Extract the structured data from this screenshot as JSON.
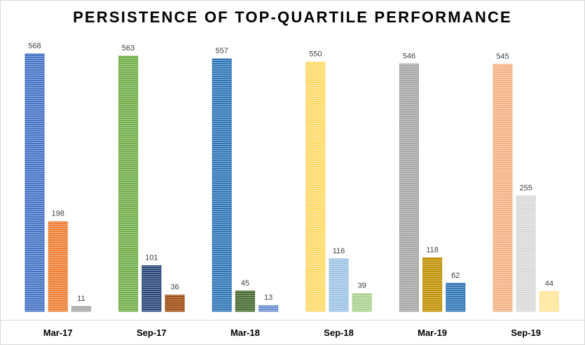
{
  "chart_data": {
    "type": "bar",
    "title": "PERSISTENCE OF TOP-QUARTILE PERFORMANCE",
    "categories": [
      "Mar-17",
      "Sep-17",
      "Mar-18",
      "Sep-18",
      "Mar-19",
      "Sep-19"
    ],
    "groups": [
      {
        "category": "Mar-17",
        "values": [
          568,
          198,
          11
        ],
        "colors": [
          "#4472c4",
          "#ed7d31",
          "#a5a5a5"
        ]
      },
      {
        "category": "Sep-17",
        "values": [
          563,
          101,
          36
        ],
        "colors": [
          "#70ad47",
          "#264478",
          "#9e480e"
        ]
      },
      {
        "category": "Mar-18",
        "values": [
          557,
          45,
          13
        ],
        "colors": [
          "#2e75b6",
          "#43682b",
          "#698ed0"
        ]
      },
      {
        "category": "Sep-18",
        "values": [
          550,
          116,
          39
        ],
        "colors": [
          "#ffd966",
          "#9dc3e6",
          "#a9d18e"
        ]
      },
      {
        "category": "Mar-19",
        "values": [
          546,
          118,
          62
        ],
        "colors": [
          "#a5a5a5",
          "#bf9000",
          "#2e75b6"
        ]
      },
      {
        "category": "Sep-19",
        "values": [
          545,
          255,
          44
        ],
        "colors": [
          "#f4b183",
          "#d9d9d9",
          "#ffe699"
        ]
      }
    ],
    "ylim": [
      0,
      568
    ],
    "grid": false,
    "legend": "none",
    "bar_pattern": "horizontal-stripes"
  }
}
